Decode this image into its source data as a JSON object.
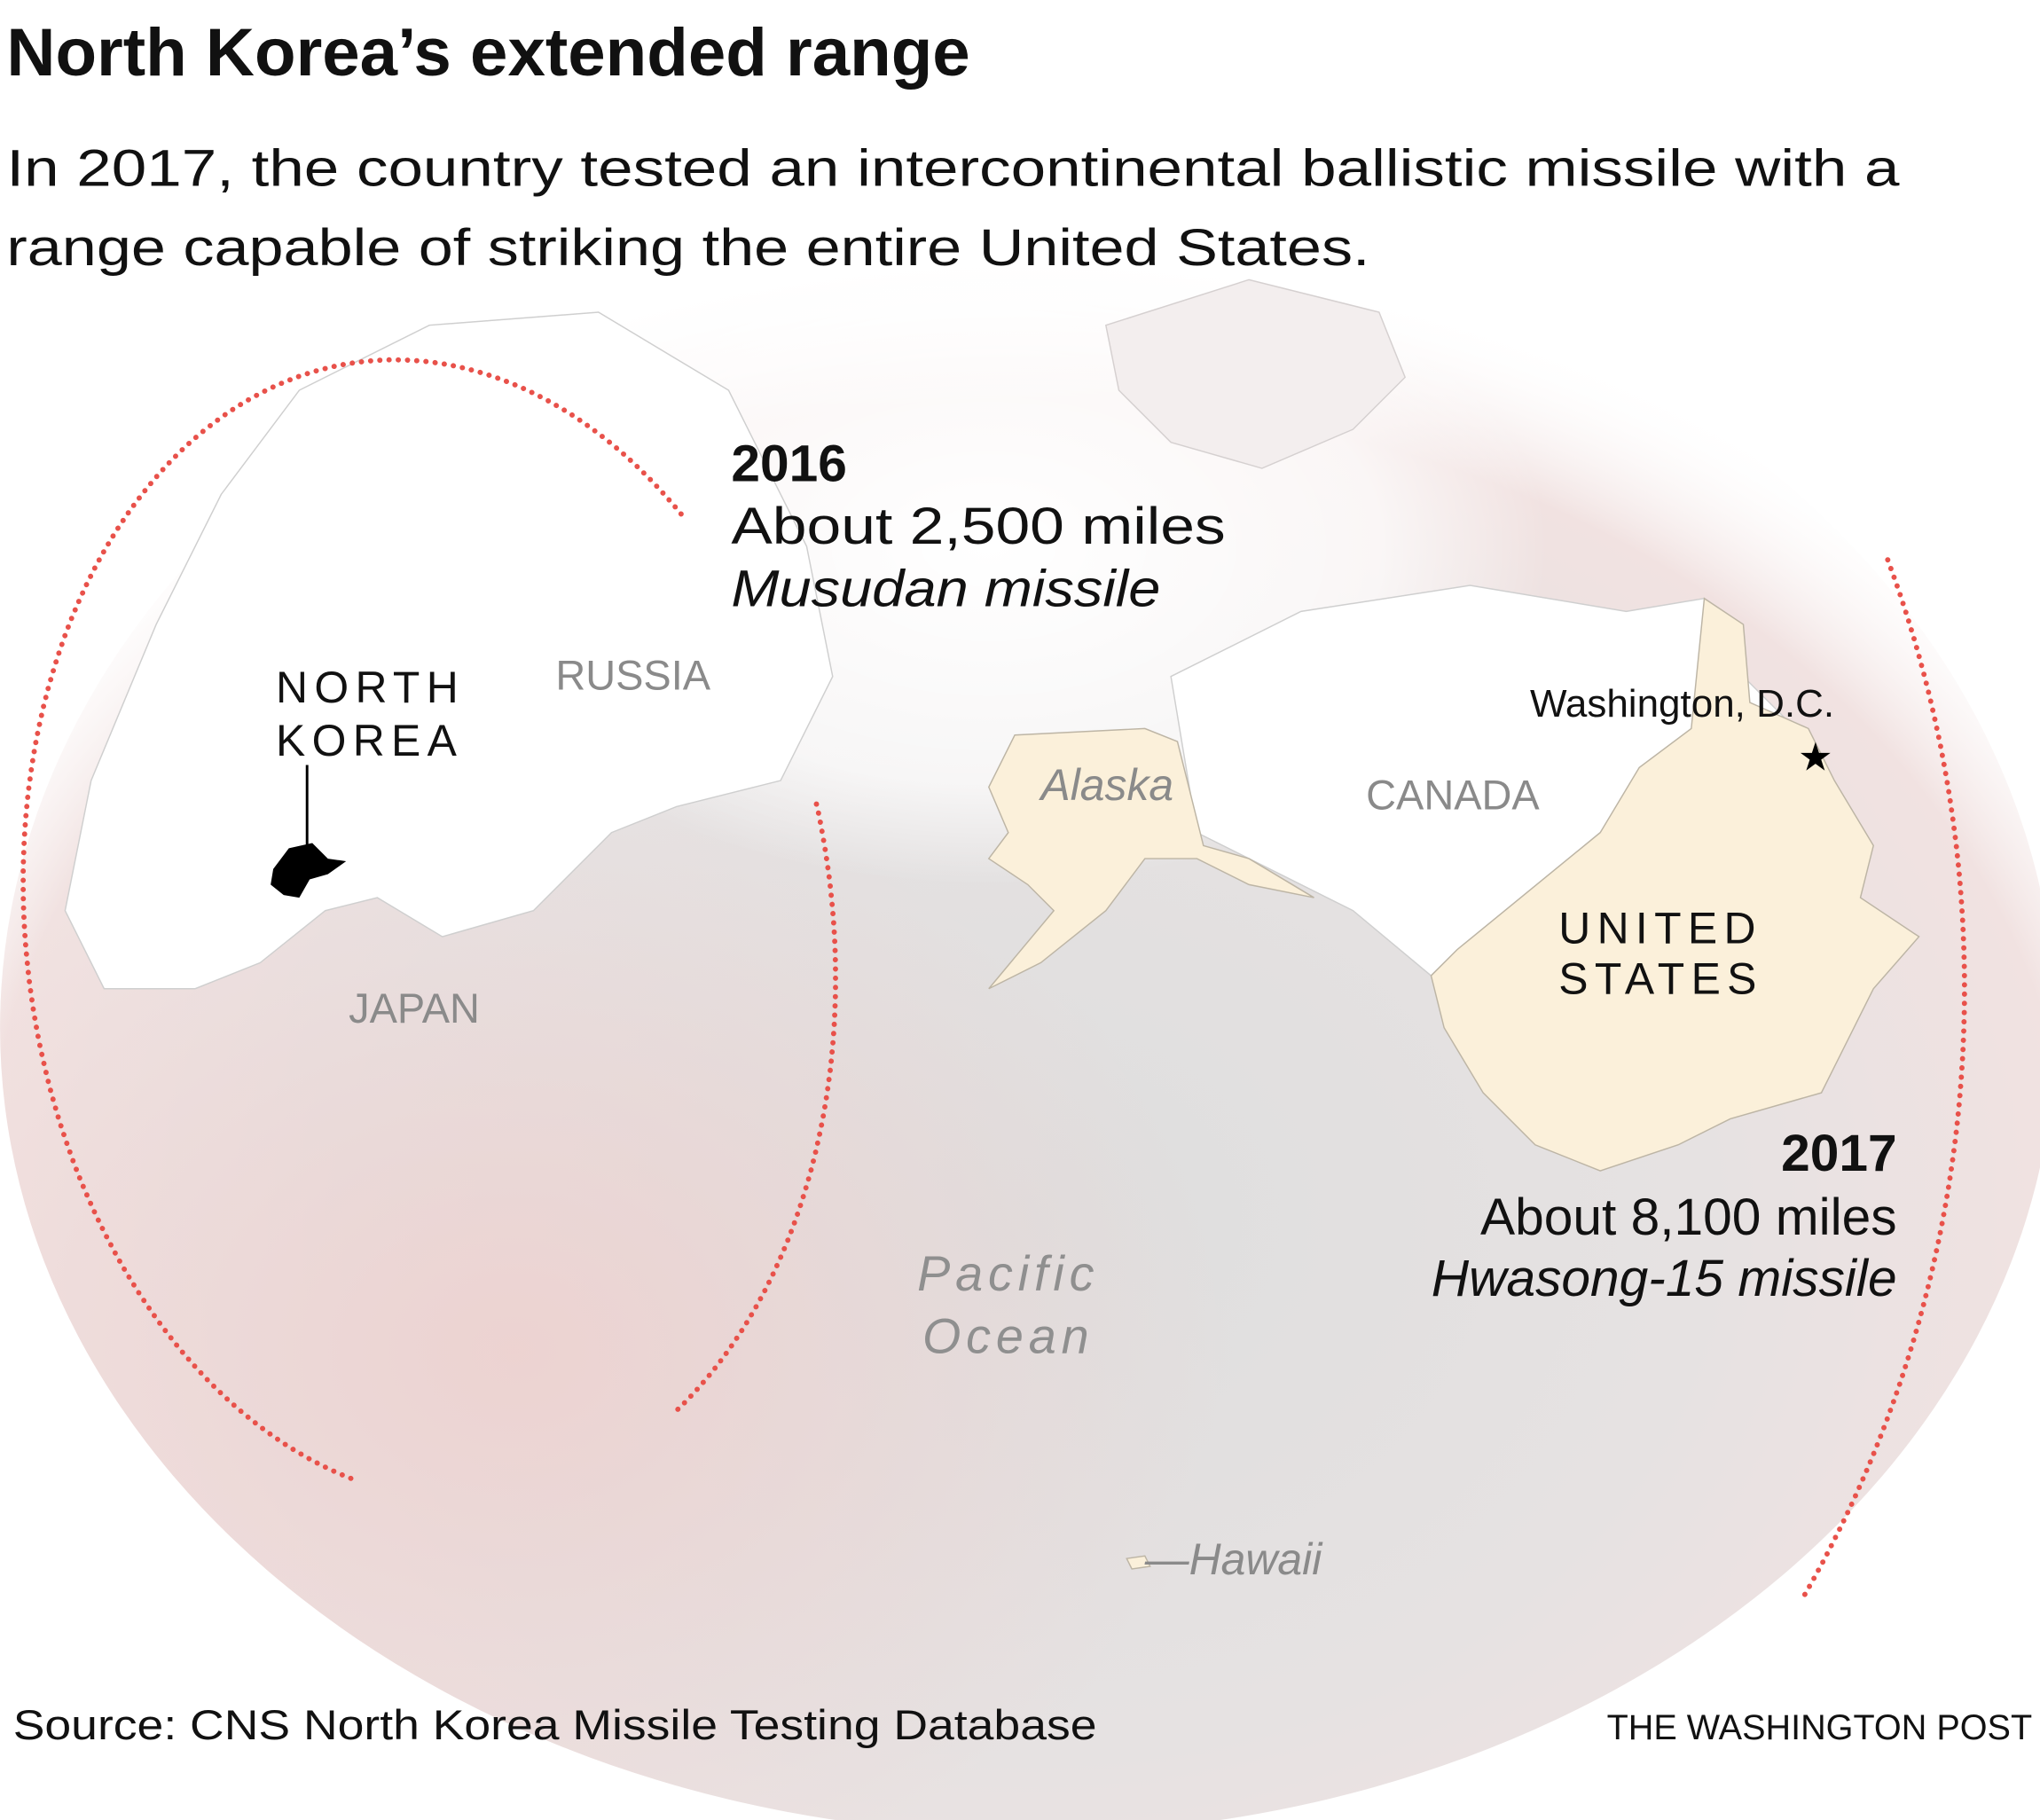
{
  "header": {
    "title": "North Korea’s extended range",
    "subtitle_line1": "In 2017, the country tested an intercontinental ballistic missile with a",
    "subtitle_line2": "range capable of striking the entire United States."
  },
  "ranges": [
    {
      "year": "2016",
      "distance": "About 2,500 miles",
      "missile": "Musudan missile",
      "range_miles": 2500
    },
    {
      "year": "2017",
      "distance": "About 8,100 miles",
      "missile": "Hwasong-15 missile",
      "range_miles": 8100
    }
  ],
  "places": {
    "north_korea_line1": "NORTH",
    "north_korea_line2": "KOREA",
    "russia": "RUSSIA",
    "japan": "JAPAN",
    "alaska": "Alaska",
    "canada": "CANADA",
    "washington": "Washington, D.C.",
    "us_line1": "UNITED",
    "us_line2": "STATES",
    "ocean_line1": "Pacific",
    "ocean_line2": "Ocean",
    "hawaii": "—Hawaii"
  },
  "colors": {
    "range_ring": "#e8514a",
    "us_fill": "#fbf0da",
    "ocean": "#e2e2e2",
    "tint": "#f0d6d4"
  },
  "footer": {
    "source": "Source: CNS North Korea Missile Testing Database",
    "credit": "THE WASHINGTON POST"
  }
}
